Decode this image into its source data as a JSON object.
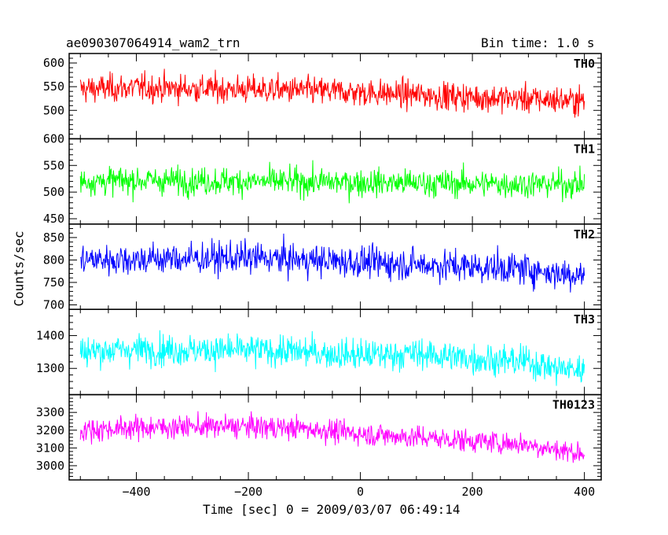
{
  "header": {
    "title": "ae090307064914_wam2_trn",
    "bin_time": "Bin time: 1.0 s"
  },
  "chart_data": {
    "type": "line",
    "title": "ae090307064914_wam2_trn",
    "subtitle": "Bin time: 1.0 s",
    "xlabel": "Time [sec] 0 = 2009/03/07 06:49:14",
    "ylabel": "Counts/sec",
    "xlim": [
      -520,
      430
    ],
    "x_ticks": [
      -400,
      -200,
      0,
      200,
      400
    ],
    "x_range": [
      -500,
      400
    ],
    "bin_time_s": 1.0,
    "grid": false,
    "panels": [
      {
        "name": "TH0",
        "color": "#ff0000",
        "ylim": [
          440,
          620
        ],
        "y_ticks": [
          500,
          550,
          600
        ],
        "mean_start": 545,
        "mean_end": 520,
        "spread": 25,
        "knots": [
          [
            -500,
            545
          ],
          [
            -400,
            548
          ],
          [
            -300,
            546
          ],
          [
            -200,
            544
          ],
          [
            -100,
            542
          ],
          [
            0,
            538
          ],
          [
            100,
            533
          ],
          [
            200,
            528
          ],
          [
            300,
            524
          ],
          [
            400,
            520
          ]
        ]
      },
      {
        "name": "TH1",
        "color": "#00ff00",
        "ylim": [
          440,
          600
        ],
        "y_ticks": [
          450,
          500,
          550,
          600
        ],
        "mean_start": 520,
        "mean_end": 515,
        "spread": 22,
        "knots": [
          [
            -500,
            520
          ],
          [
            -400,
            522
          ],
          [
            -300,
            521
          ],
          [
            -200,
            520
          ],
          [
            -100,
            519
          ],
          [
            0,
            518
          ],
          [
            100,
            517
          ],
          [
            200,
            516
          ],
          [
            300,
            515
          ],
          [
            400,
            515
          ]
        ]
      },
      {
        "name": "TH2",
        "color": "#0000ff",
        "ylim": [
          690,
          880
        ],
        "y_ticks": [
          700,
          750,
          800,
          850
        ],
        "mean_start": 800,
        "mean_end": 770,
        "spread": 30,
        "knots": [
          [
            -500,
            800
          ],
          [
            -400,
            802
          ],
          [
            -300,
            803
          ],
          [
            -200,
            805
          ],
          [
            -100,
            800
          ],
          [
            0,
            795
          ],
          [
            100,
            790
          ],
          [
            200,
            785
          ],
          [
            300,
            780
          ],
          [
            350,
            770
          ],
          [
            400,
            768
          ]
        ]
      },
      {
        "name": "TH3",
        "color": "#00ffff",
        "ylim": [
          1220,
          1480
        ],
        "y_ticks": [
          1300,
          1400
        ],
        "mean_start": 1350,
        "mean_end": 1300,
        "spread": 40,
        "knots": [
          [
            -500,
            1352
          ],
          [
            -400,
            1358
          ],
          [
            -300,
            1356
          ],
          [
            -200,
            1355
          ],
          [
            -100,
            1350
          ],
          [
            0,
            1340
          ],
          [
            100,
            1345
          ],
          [
            200,
            1330
          ],
          [
            300,
            1320
          ],
          [
            350,
            1300
          ],
          [
            400,
            1295
          ]
        ]
      },
      {
        "name": "TH0123",
        "color": "#ff00ff",
        "ylim": [
          2920,
          3400
        ],
        "y_ticks": [
          3000,
          3100,
          3200,
          3300
        ],
        "mean_start": 3200,
        "mean_end": 3080,
        "spread": 55,
        "knots": [
          [
            -500,
            3200
          ],
          [
            -400,
            3215
          ],
          [
            -300,
            3220
          ],
          [
            -200,
            3220
          ],
          [
            -100,
            3210
          ],
          [
            0,
            3180
          ],
          [
            100,
            3160
          ],
          [
            200,
            3140
          ],
          [
            300,
            3120
          ],
          [
            350,
            3090
          ],
          [
            400,
            3070
          ]
        ]
      }
    ]
  }
}
